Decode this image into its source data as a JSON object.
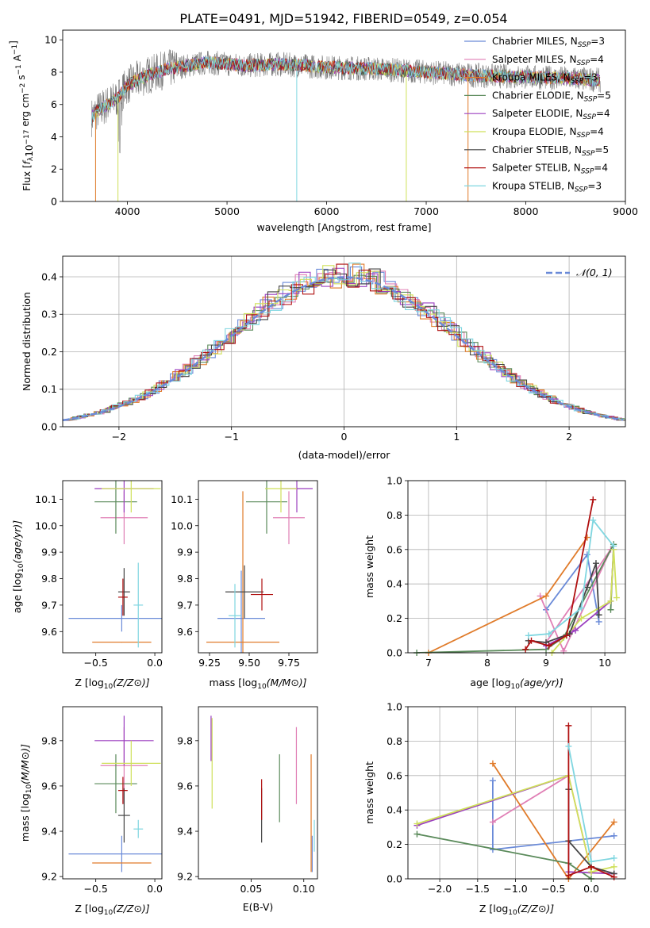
{
  "title": "PLATE=0491, MJD=51942, FIBERID=0549, z=0.054",
  "colors": {
    "Chabrier MILES": "#6a8ad8",
    "Salpeter MILES": "#e07fb5",
    "Kroupa MILES": "#e07b2a",
    "Chabrier ELODIE": "#5a8a5a",
    "Salpeter ELODIE": "#9b3fbf",
    "Kroupa ELODIE": "#cfe05a",
    "Chabrier STELIB": "#444444",
    "Salpeter STELIB": "#b01010",
    "Kroupa STELIB": "#7fd6e0"
  },
  "chart_data": [
    {
      "id": "spectrum",
      "type": "line",
      "xlabel": "wavelength [Angstrom, rest frame]",
      "ylabel": "Flux [f_λ10^-17 erg cm^-2 s^-1 A^-1]",
      "xlim": [
        3350,
        9000
      ],
      "ylim": [
        0,
        10.6
      ],
      "xticks": [
        4000,
        5000,
        6000,
        7000,
        8000,
        9000
      ],
      "yticks": [
        0,
        2,
        4,
        6,
        8,
        10
      ],
      "legend_position": "top-right",
      "legend": [
        {
          "model": "Chabrier MILES",
          "label": "Chabrier MILES, N",
          "sub": "SSP",
          "suffix": "=3"
        },
        {
          "model": "Salpeter MILES",
          "label": "Salpeter MILES, N",
          "sub": "SSP",
          "suffix": "=4"
        },
        {
          "model": "Kroupa MILES",
          "label": "Kroupa MILES, N",
          "sub": "SSP",
          "suffix": "=3"
        },
        {
          "model": "Chabrier ELODIE",
          "label": "Chabrier ELODIE, N",
          "sub": "SSP",
          "suffix": "=5"
        },
        {
          "model": "Salpeter ELODIE",
          "label": "Salpeter ELODIE, N",
          "sub": "SSP",
          "suffix": "=4"
        },
        {
          "model": "Kroupa ELODIE",
          "label": "Kroupa ELODIE, N",
          "sub": "SSP",
          "suffix": "=4"
        },
        {
          "model": "Chabrier STELIB",
          "label": "Chabrier STELIB, N",
          "sub": "SSP",
          "suffix": "=5"
        },
        {
          "model": "Salpeter STELIB",
          "label": "Salpeter STELIB, N",
          "sub": "SSP",
          "suffix": "=4"
        },
        {
          "model": "Kroupa STELIB",
          "label": "Kroupa STELIB, N",
          "sub": "SSP",
          "suffix": "=3"
        }
      ],
      "continuum": [
        [
          3640,
          5.2
        ],
        [
          3700,
          5.6
        ],
        [
          3800,
          6.0
        ],
        [
          3900,
          6.4
        ],
        [
          4000,
          7.2
        ],
        [
          4200,
          7.8
        ],
        [
          4400,
          8.2
        ],
        [
          4600,
          8.4
        ],
        [
          4800,
          8.6
        ],
        [
          5000,
          8.5
        ],
        [
          5200,
          8.4
        ],
        [
          5500,
          8.5
        ],
        [
          6000,
          8.3
        ],
        [
          6500,
          8.2
        ],
        [
          7000,
          8.0
        ],
        [
          7500,
          7.8
        ],
        [
          8000,
          7.7
        ],
        [
          8500,
          7.6
        ],
        [
          8750,
          7.5
        ]
      ]
    },
    {
      "id": "residuals",
      "type": "histogram",
      "xlabel": "(data-model)/error",
      "ylabel": "Normed distribution",
      "xlim": [
        -2.5,
        2.5
      ],
      "ylim": [
        0,
        0.455
      ],
      "xticks": [
        -2,
        -1,
        0,
        1,
        2
      ],
      "yticks": [
        0.0,
        0.1,
        0.2,
        0.3,
        0.4
      ],
      "grid": true,
      "legend_position": "top-right",
      "reference_curve": "N(0,1)",
      "reference_label": "𝒩(0, 1)"
    },
    {
      "id": "age_vs_Z",
      "type": "errorbar",
      "xlabel": "Z [log10(Z/Z⊙)]",
      "ylabel": "age  [log10(age/yr)]",
      "xlim": [
        -0.78,
        0.06
      ],
      "ylim": [
        9.52,
        10.17
      ],
      "xticks": [
        -0.5,
        0.0
      ],
      "yticks": [
        9.6,
        9.7,
        9.8,
        9.9,
        10.0,
        10.1
      ],
      "points": [
        {
          "model": "Chabrier MILES",
          "x": -0.28,
          "xerr": 0.45,
          "y": 9.65,
          "yerr": 0.05
        },
        {
          "model": "Salpeter MILES",
          "x": -0.26,
          "xerr": 0.2,
          "y": 10.03,
          "yerr": 0.1
        },
        {
          "model": "Kroupa MILES",
          "x": -0.28,
          "xerr": 0.25,
          "y": 9.56,
          "yerr": 0.0
        },
        {
          "model": "Chabrier ELODIE",
          "x": -0.33,
          "xerr": 0.18,
          "y": 10.09,
          "yerr": 0.12
        },
        {
          "model": "Salpeter ELODIE",
          "x": -0.26,
          "xerr": 0.25,
          "y": 10.14,
          "yerr": 0.09
        },
        {
          "model": "Kroupa ELODIE",
          "x": -0.2,
          "xerr": 0.25,
          "y": 10.14,
          "yerr": 0.09
        },
        {
          "model": "Chabrier STELIB",
          "x": -0.26,
          "xerr": 0.05,
          "y": 9.75,
          "yerr": 0.09
        },
        {
          "model": "Salpeter STELIB",
          "x": -0.27,
          "xerr": 0.04,
          "y": 9.73,
          "yerr": 0.07
        },
        {
          "model": "Kroupa STELIB",
          "x": -0.14,
          "xerr": 0.04,
          "y": 9.7,
          "yerr": 0.16
        }
      ]
    },
    {
      "id": "age_vs_mass",
      "type": "errorbar",
      "xlabel": "mass [log10(M/M⊙)]",
      "ylabel": "",
      "xlim": [
        9.18,
        9.93
      ],
      "ylim": [
        9.52,
        10.17
      ],
      "xticks": [
        9.25,
        9.5,
        9.75
      ],
      "yticks": [
        9.6,
        9.7,
        9.8,
        9.9,
        10.0,
        10.1
      ],
      "points": [
        {
          "model": "Chabrier MILES",
          "x": 9.45,
          "xerr": 0.15,
          "y": 9.65,
          "yerr": 0.18
        },
        {
          "model": "Salpeter MILES",
          "x": 9.75,
          "xerr": 0.1,
          "y": 10.03,
          "yerr": 0.1
        },
        {
          "model": "Kroupa MILES",
          "x": 9.46,
          "xerr": 0.23,
          "y": 9.56,
          "yerr": 0.57
        },
        {
          "model": "Chabrier ELODIE",
          "x": 9.61,
          "xerr": 0.13,
          "y": 10.09,
          "yerr": 0.12
        },
        {
          "model": "Salpeter ELODIE",
          "x": 9.8,
          "xerr": 0.1,
          "y": 10.14,
          "yerr": 0.09
        },
        {
          "model": "Kroupa ELODIE",
          "x": 9.7,
          "xerr": 0.1,
          "y": 10.14,
          "yerr": 0.09
        },
        {
          "model": "Chabrier STELIB",
          "x": 9.47,
          "xerr": 0.12,
          "y": 9.75,
          "yerr": 0.1
        },
        {
          "model": "Salpeter STELIB",
          "x": 9.58,
          "xerr": 0.07,
          "y": 9.74,
          "yerr": 0.06
        },
        {
          "model": "Kroupa STELIB",
          "x": 9.41,
          "xerr": 0.04,
          "y": 9.66,
          "yerr": 0.12
        }
      ]
    },
    {
      "id": "mass_weight_vs_age",
      "type": "line",
      "xlabel": "age  [log10(age/yr)]",
      "ylabel": "mass weight",
      "xlim": [
        6.65,
        10.35
      ],
      "ylim": [
        0.0,
        1.0
      ],
      "xticks": [
        7,
        8,
        9,
        10
      ],
      "yticks": [
        0.0,
        0.2,
        0.4,
        0.6,
        0.8,
        1.0
      ],
      "grid": true,
      "series": [
        {
          "model": "Chabrier MILES",
          "points": [
            [
              9.0,
              0.25
            ],
            [
              9.7,
              0.57
            ],
            [
              9.9,
              0.18
            ]
          ]
        },
        {
          "model": "Salpeter MILES",
          "points": [
            [
              9.0,
              0.06
            ],
            [
              10.1,
              0.6
            ],
            [
              9.3,
              0.01
            ],
            [
              8.9,
              0.33
            ]
          ]
        },
        {
          "model": "Kroupa MILES",
          "points": [
            [
              7.0,
              0.0
            ],
            [
              9.0,
              0.33
            ],
            [
              9.7,
              0.67
            ]
          ]
        },
        {
          "model": "Chabrier ELODIE",
          "points": [
            [
              6.8,
              0.0
            ],
            [
              9.0,
              0.02
            ],
            [
              9.3,
              0.09
            ],
            [
              10.15,
              0.63
            ],
            [
              10.1,
              0.25
            ]
          ]
        },
        {
          "model": "Salpeter ELODIE",
          "points": [
            [
              9.0,
              0.04
            ],
            [
              9.5,
              0.13
            ],
            [
              10.1,
              0.3
            ],
            [
              10.15,
              0.6
            ]
          ]
        },
        {
          "model": "Kroupa ELODIE",
          "points": [
            [
              9.1,
              0.0
            ],
            [
              9.6,
              0.2
            ],
            [
              10.1,
              0.3
            ],
            [
              10.15,
              0.6
            ],
            [
              10.2,
              0.32
            ]
          ]
        },
        {
          "model": "Chabrier STELIB",
          "points": [
            [
              8.7,
              0.07
            ],
            [
              9.0,
              0.06
            ],
            [
              9.4,
              0.11
            ],
            [
              9.7,
              0.38
            ],
            [
              9.85,
              0.52
            ],
            [
              9.9,
              0.22
            ]
          ]
        },
        {
          "model": "Salpeter STELIB",
          "points": [
            [
              8.65,
              0.02
            ],
            [
              8.75,
              0.07
            ],
            [
              9.05,
              0.04
            ],
            [
              9.35,
              0.1
            ],
            [
              9.8,
              0.89
            ]
          ]
        },
        {
          "model": "Kroupa STELIB",
          "points": [
            [
              8.7,
              0.1
            ],
            [
              9.05,
              0.11
            ],
            [
              9.6,
              0.26
            ],
            [
              9.8,
              0.77
            ],
            [
              10.15,
              0.62
            ]
          ]
        }
      ]
    },
    {
      "id": "mass_vs_Z",
      "type": "errorbar",
      "xlabel": "Z [log10(Z/Z⊙)]",
      "ylabel": "mass [log10(M/M⊙)]",
      "xlim": [
        -0.78,
        0.06
      ],
      "ylim": [
        9.19,
        9.95
      ],
      "xticks": [
        -0.5,
        0.0
      ],
      "yticks": [
        9.2,
        9.4,
        9.6,
        9.8
      ],
      "points": [
        {
          "model": "Chabrier MILES",
          "x": -0.28,
          "xerr": 0.45,
          "y": 9.3,
          "yerr": 0.08
        },
        {
          "model": "Salpeter MILES",
          "x": -0.26,
          "xerr": 0.2,
          "y": 9.69,
          "yerr": 0.17
        },
        {
          "model": "Kroupa MILES",
          "x": -0.28,
          "xerr": 0.25,
          "y": 9.26,
          "yerr": 0.0
        },
        {
          "model": "Chabrier ELODIE",
          "x": -0.33,
          "xerr": 0.18,
          "y": 9.61,
          "yerr": 0.13
        },
        {
          "model": "Salpeter ELODIE",
          "x": -0.26,
          "xerr": 0.25,
          "y": 9.8,
          "yerr": 0.11
        },
        {
          "model": "Kroupa ELODIE",
          "x": -0.2,
          "xerr": 0.25,
          "y": 9.7,
          "yerr": 0.1
        },
        {
          "model": "Chabrier STELIB",
          "x": -0.26,
          "xerr": 0.05,
          "y": 9.47,
          "yerr": 0.12
        },
        {
          "model": "Salpeter STELIB",
          "x": -0.27,
          "xerr": 0.04,
          "y": 9.58,
          "yerr": 0.06
        },
        {
          "model": "Kroupa STELIB",
          "x": -0.14,
          "xerr": 0.04,
          "y": 9.41,
          "yerr": 0.04
        }
      ]
    },
    {
      "id": "mass_vs_EBV",
      "type": "errorbar",
      "xlabel": "E(B-V)",
      "ylabel": "",
      "xlim": [
        0.0,
        0.113
      ],
      "ylim": [
        9.19,
        9.95
      ],
      "xticks": [
        0.05,
        0.1
      ],
      "yticks": [
        9.2,
        9.4,
        9.6,
        9.8
      ],
      "points": [
        {
          "model": "Chabrier MILES",
          "x": 0.108,
          "xerr": 0.0,
          "y": 9.3,
          "yerr": 0.08
        },
        {
          "model": "Salpeter MILES",
          "x": 0.093,
          "xerr": 0.0,
          "y": 9.69,
          "yerr": 0.17
        },
        {
          "model": "Kroupa MILES",
          "x": 0.107,
          "xerr": 0.0,
          "y": 9.48,
          "yerr": 0.26
        },
        {
          "model": "Chabrier ELODIE",
          "x": 0.077,
          "xerr": 0.0,
          "y": 9.59,
          "yerr": 0.15
        },
        {
          "model": "Salpeter ELODIE",
          "x": 0.012,
          "xerr": 0.0,
          "y": 9.81,
          "yerr": 0.1
        },
        {
          "model": "Kroupa ELODIE",
          "x": 0.013,
          "xerr": 0.0,
          "y": 9.7,
          "yerr": 0.2
        },
        {
          "model": "Chabrier STELIB",
          "x": 0.06,
          "xerr": 0.0,
          "y": 9.47,
          "yerr": 0.12
        },
        {
          "model": "Salpeter STELIB",
          "x": 0.06,
          "xerr": 0.0,
          "y": 9.54,
          "yerr": 0.09
        },
        {
          "model": "Kroupa STELIB",
          "x": 0.11,
          "xerr": 0.0,
          "y": 9.38,
          "yerr": 0.07
        }
      ]
    },
    {
      "id": "mass_weight_vs_Z",
      "type": "line",
      "xlabel": "Z [log10(Z/Z⊙)]",
      "ylabel": "mass weight",
      "xlim": [
        -2.42,
        0.45
      ],
      "ylim": [
        0.0,
        1.0
      ],
      "xticks": [
        -2.0,
        -1.5,
        -1.0,
        -0.5,
        0.0
      ],
      "yticks": [
        0.0,
        0.2,
        0.4,
        0.6,
        0.8,
        1.0
      ],
      "grid": true,
      "series": [
        {
          "model": "Chabrier MILES",
          "points": [
            [
              -1.3,
              0.57
            ],
            [
              -1.3,
              0.17
            ],
            [
              0.3,
              0.25
            ]
          ]
        },
        {
          "model": "Salpeter MILES",
          "points": [
            [
              -1.3,
              0.33
            ],
            [
              -0.3,
              0.6
            ],
            [
              0.0,
              0.04
            ]
          ]
        },
        {
          "model": "Kroupa MILES",
          "points": [
            [
              -1.3,
              0.67
            ],
            [
              -0.3,
              0.0
            ],
            [
              0.3,
              0.33
            ]
          ]
        },
        {
          "model": "Chabrier ELODIE",
          "points": [
            [
              -2.3,
              0.26
            ],
            [
              -0.3,
              0.09
            ],
            [
              0.0,
              0.0
            ]
          ]
        },
        {
          "model": "Salpeter ELODIE",
          "points": [
            [
              -2.3,
              0.31
            ],
            [
              -0.3,
              0.6
            ],
            [
              -0.3,
              0.04
            ],
            [
              0.3,
              0.03
            ]
          ]
        },
        {
          "model": "Kroupa ELODIE",
          "points": [
            [
              -2.3,
              0.32
            ],
            [
              -0.3,
              0.6
            ],
            [
              0.0,
              0.04
            ],
            [
              0.3,
              0.07
            ]
          ]
        },
        {
          "model": "Chabrier STELIB",
          "points": [
            [
              -0.3,
              0.52
            ],
            [
              -0.3,
              0.22
            ],
            [
              0.0,
              0.07
            ],
            [
              0.3,
              0.03
            ]
          ]
        },
        {
          "model": "Salpeter STELIB",
          "points": [
            [
              -0.3,
              0.89
            ],
            [
              -0.3,
              0.02
            ],
            [
              0.0,
              0.07
            ],
            [
              0.3,
              0.01
            ]
          ]
        },
        {
          "model": "Kroupa STELIB",
          "points": [
            [
              -0.3,
              0.77
            ],
            [
              0.0,
              0.1
            ],
            [
              0.3,
              0.12
            ]
          ]
        }
      ]
    }
  ]
}
